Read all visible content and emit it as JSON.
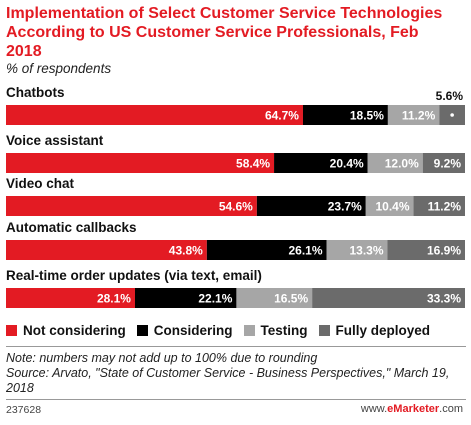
{
  "header": {
    "title": "Implementation of Select Customer Service Technologies According to US Customer Service Professionals, Feb 2018",
    "subtitle": "% of respondents"
  },
  "chart_data": {
    "type": "bar",
    "orientation": "horizontal-stacked",
    "categories": [
      "Chatbots",
      "Voice assistant",
      "Video chat",
      "Automatic callbacks",
      "Real-time order updates (via text, email)"
    ],
    "series": [
      {
        "name": "Not considering",
        "color": "#e31b23",
        "values": [
          64.7,
          58.4,
          54.6,
          43.8,
          28.1
        ]
      },
      {
        "name": "Considering",
        "color": "#000000",
        "values": [
          18.5,
          20.4,
          23.7,
          26.1,
          22.1
        ]
      },
      {
        "name": "Testing",
        "color": "#a6a6a6",
        "values": [
          11.2,
          12.0,
          10.4,
          13.3,
          16.5
        ]
      },
      {
        "name": "Fully deployed",
        "color": "#6b6b6b",
        "values": [
          5.6,
          9.2,
          11.2,
          16.9,
          33.3
        ]
      }
    ],
    "value_labels": [
      [
        "64.7%",
        "18.5%",
        "11.2%",
        "5.6%"
      ],
      [
        "58.4%",
        "20.4%",
        "12.0%",
        "9.2%"
      ],
      [
        "54.6%",
        "23.7%",
        "10.4%",
        "11.2%"
      ],
      [
        "43.8%",
        "26.1%",
        "13.3%",
        "16.9%"
      ],
      [
        "28.1%",
        "22.1%",
        "16.5%",
        "33.3%"
      ]
    ],
    "legend_position": "bottom"
  },
  "footer": {
    "note": "Note: numbers may not add up to 100% due to rounding",
    "source": "Source: Arvato, \"State of Customer Service - Business Perspectives,\" March 19, 2018",
    "chart_id": "237628",
    "brand_prefix": "www.",
    "brand_name": "eMarketer",
    "brand_suffix": ".com"
  }
}
